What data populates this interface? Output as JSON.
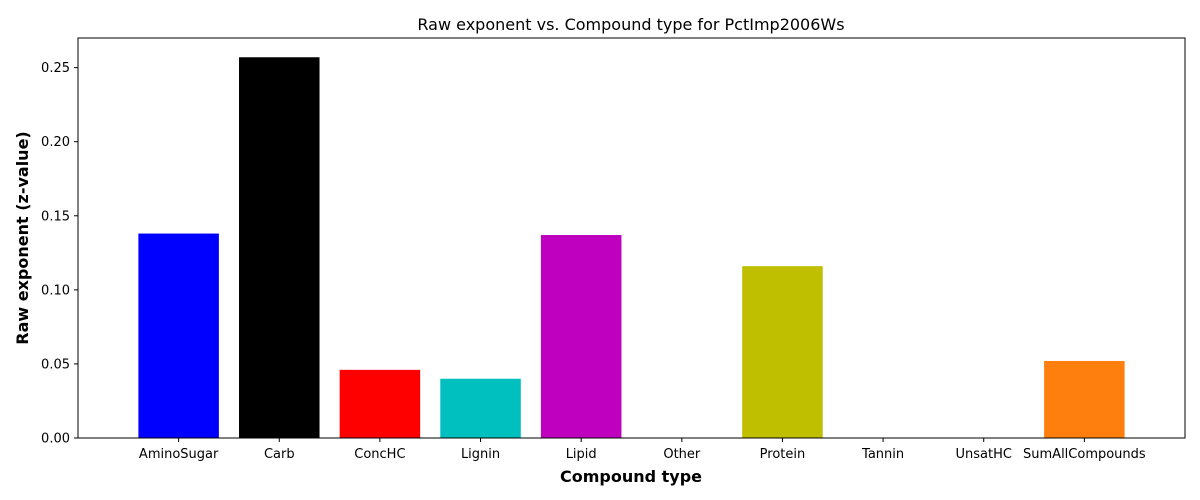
{
  "chart_data": {
    "type": "bar",
    "title": "Raw exponent vs. Compound type for PctImp2006Ws",
    "xlabel": "Compound type",
    "ylabel": "Raw exponent (z-value)",
    "categories": [
      "AminoSugar",
      "Carb",
      "ConcHC",
      "Lignin",
      "Lipid",
      "Other",
      "Protein",
      "Tannin",
      "UnsatHC",
      "SumAllCompounds"
    ],
    "values": [
      0.138,
      0.257,
      0.046,
      0.04,
      0.137,
      0.0,
      0.116,
      0.0,
      0.0,
      0.052
    ],
    "colors": [
      "#0000ff",
      "#000000",
      "#ff0000",
      "#00bfbf",
      "#bf00bf",
      "#000000",
      "#bfbf00",
      "#000000",
      "#000000",
      "#ff7f0e"
    ],
    "ylim": [
      0,
      0.27
    ],
    "yticks": [
      0.0,
      0.05,
      0.1,
      0.15,
      0.2,
      0.25
    ],
    "ytick_labels": [
      "0.00",
      "0.05",
      "0.10",
      "0.15",
      "0.20",
      "0.25"
    ],
    "grid": false,
    "legend": "none"
  }
}
